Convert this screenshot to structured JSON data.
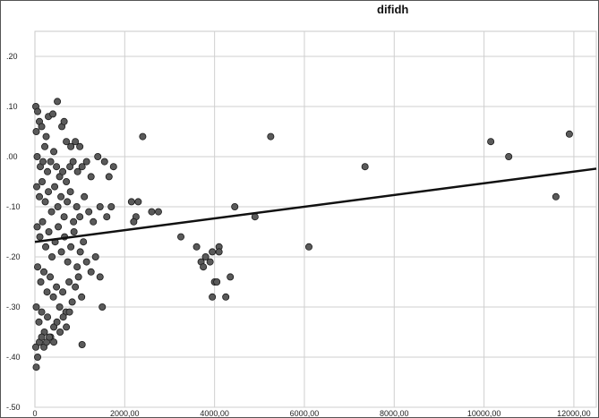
{
  "chart_data": {
    "type": "scatter",
    "title": "difidh",
    "xlabel": "",
    "ylabel": "",
    "xlim": [
      0,
      12500
    ],
    "ylim": [
      -0.5,
      0.25
    ],
    "grid": true,
    "x_ticks": [
      0,
      2000,
      4000,
      6000,
      8000,
      10000,
      12000
    ],
    "x_tick_labels": [
      "0",
      "2000,00",
      "4000,00",
      "6000,00",
      "8000,00",
      "10000,00",
      "12000,00"
    ],
    "y_ticks": [
      0.2,
      0.1,
      0.0,
      -0.1,
      -0.2,
      -0.3,
      -0.4,
      -0.5
    ],
    "y_tick_labels": [
      ".20",
      ".10",
      ".00",
      "-.10",
      "-.20",
      "-.30",
      "-.40",
      "-.50"
    ],
    "fit_line": {
      "x": [
        0,
        12500
      ],
      "y": [
        -0.17,
        -0.024
      ]
    },
    "marker_color": "#5a5a5a",
    "line_color": "#111111",
    "points": [
      [
        20,
        0.1
      ],
      [
        60,
        0.09
      ],
      [
        30,
        0.05
      ],
      [
        100,
        0.07
      ],
      [
        150,
        0.06
      ],
      [
        250,
        0.04
      ],
      [
        300,
        0.08
      ],
      [
        400,
        0.085
      ],
      [
        500,
        0.11
      ],
      [
        600,
        0.06
      ],
      [
        650,
        0.07
      ],
      [
        700,
        0.03
      ],
      [
        800,
        0.02
      ],
      [
        900,
        0.03
      ],
      [
        1000,
        0.02
      ],
      [
        50,
        0.0
      ],
      [
        120,
        -0.02
      ],
      [
        180,
        -0.01
      ],
      [
        220,
        0.02
      ],
      [
        280,
        -0.03
      ],
      [
        350,
        -0.01
      ],
      [
        420,
        0.01
      ],
      [
        480,
        -0.02
      ],
      [
        550,
        -0.04
      ],
      [
        620,
        -0.03
      ],
      [
        700,
        -0.05
      ],
      [
        780,
        -0.02
      ],
      [
        850,
        -0.01
      ],
      [
        950,
        -0.03
      ],
      [
        1050,
        -0.02
      ],
      [
        1150,
        -0.01
      ],
      [
        1250,
        -0.04
      ],
      [
        1400,
        0.0
      ],
      [
        1550,
        -0.01
      ],
      [
        1650,
        -0.04
      ],
      [
        1750,
        -0.02
      ],
      [
        40,
        -0.06
      ],
      [
        100,
        -0.08
      ],
      [
        160,
        -0.05
      ],
      [
        230,
        -0.09
      ],
      [
        300,
        -0.07
      ],
      [
        370,
        -0.11
      ],
      [
        440,
        -0.06
      ],
      [
        510,
        -0.1
      ],
      [
        580,
        -0.08
      ],
      [
        650,
        -0.12
      ],
      [
        720,
        -0.09
      ],
      [
        790,
        -0.07
      ],
      [
        860,
        -0.13
      ],
      [
        930,
        -0.1
      ],
      [
        1000,
        -0.12
      ],
      [
        1100,
        -0.08
      ],
      [
        1200,
        -0.11
      ],
      [
        1300,
        -0.13
      ],
      [
        1450,
        -0.1
      ],
      [
        1600,
        -0.12
      ],
      [
        1700,
        -0.1
      ],
      [
        50,
        -0.14
      ],
      [
        110,
        -0.16
      ],
      [
        170,
        -0.13
      ],
      [
        240,
        -0.18
      ],
      [
        310,
        -0.15
      ],
      [
        380,
        -0.2
      ],
      [
        450,
        -0.17
      ],
      [
        520,
        -0.14
      ],
      [
        590,
        -0.19
      ],
      [
        660,
        -0.16
      ],
      [
        730,
        -0.21
      ],
      [
        800,
        -0.18
      ],
      [
        870,
        -0.15
      ],
      [
        940,
        -0.22
      ],
      [
        1010,
        -0.19
      ],
      [
        1080,
        -0.17
      ],
      [
        1150,
        -0.21
      ],
      [
        1250,
        -0.23
      ],
      [
        1350,
        -0.2
      ],
      [
        1450,
        -0.24
      ],
      [
        60,
        -0.22
      ],
      [
        130,
        -0.25
      ],
      [
        200,
        -0.23
      ],
      [
        270,
        -0.27
      ],
      [
        340,
        -0.24
      ],
      [
        410,
        -0.28
      ],
      [
        480,
        -0.26
      ],
      [
        550,
        -0.3
      ],
      [
        620,
        -0.27
      ],
      [
        690,
        -0.31
      ],
      [
        760,
        -0.25
      ],
      [
        830,
        -0.29
      ],
      [
        900,
        -0.26
      ],
      [
        970,
        -0.24
      ],
      [
        1040,
        -0.28
      ],
      [
        30,
        -0.3
      ],
      [
        90,
        -0.33
      ],
      [
        150,
        -0.31
      ],
      [
        210,
        -0.35
      ],
      [
        280,
        -0.32
      ],
      [
        350,
        -0.36
      ],
      [
        420,
        -0.34
      ],
      [
        490,
        -0.33
      ],
      [
        560,
        -0.35
      ],
      [
        630,
        -0.32
      ],
      [
        700,
        -0.34
      ],
      [
        770,
        -0.31
      ],
      [
        1500,
        -0.3
      ],
      [
        20,
        -0.38
      ],
      [
        60,
        -0.4
      ],
      [
        100,
        -0.37
      ],
      [
        150,
        -0.36
      ],
      [
        200,
        -0.38
      ],
      [
        260,
        -0.37
      ],
      [
        320,
        -0.36
      ],
      [
        420,
        -0.37
      ],
      [
        1050,
        -0.375
      ],
      [
        30,
        -0.42
      ],
      [
        2150,
        -0.09
      ],
      [
        2250,
        -0.12
      ],
      [
        2300,
        -0.09
      ],
      [
        2200,
        -0.13
      ],
      [
        2400,
        0.04
      ],
      [
        2600,
        -0.11
      ],
      [
        2750,
        -0.11
      ],
      [
        3250,
        -0.16
      ],
      [
        3600,
        -0.18
      ],
      [
        3700,
        -0.21
      ],
      [
        3750,
        -0.22
      ],
      [
        3800,
        -0.2
      ],
      [
        3900,
        -0.21
      ],
      [
        3950,
        -0.19
      ],
      [
        4000,
        -0.25
      ],
      [
        3950,
        -0.28
      ],
      [
        4050,
        -0.25
      ],
      [
        4100,
        -0.18
      ],
      [
        4100,
        -0.19
      ],
      [
        4250,
        -0.28
      ],
      [
        4350,
        -0.24
      ],
      [
        4450,
        -0.1
      ],
      [
        4900,
        -0.12
      ],
      [
        5250,
        0.04
      ],
      [
        6100,
        -0.18
      ],
      [
        7350,
        -0.02
      ],
      [
        10150,
        0.03
      ],
      [
        10550,
        0.0
      ],
      [
        11600,
        -0.08
      ],
      [
        11900,
        0.045
      ]
    ]
  }
}
